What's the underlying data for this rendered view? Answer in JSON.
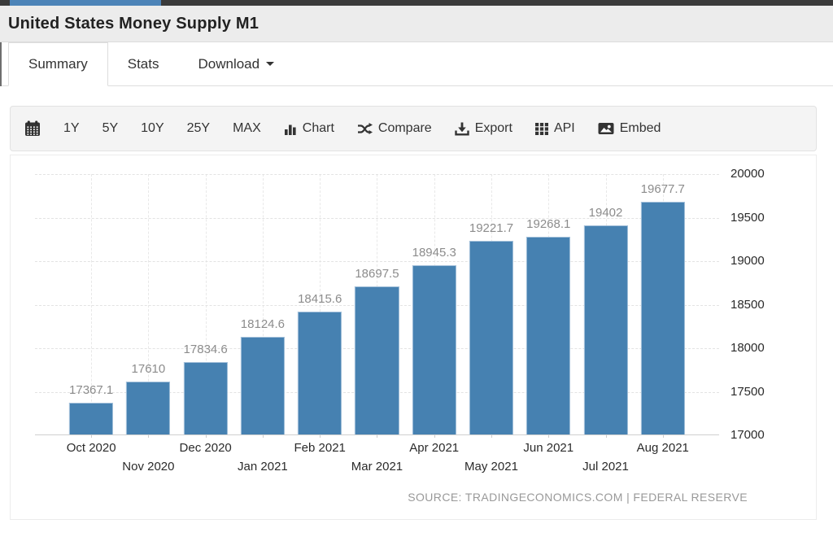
{
  "page": {
    "top_progress_color": "#4d84b8"
  },
  "header": {
    "title": "United States Money Supply M1"
  },
  "tabs": {
    "summary": "Summary",
    "stats": "Stats",
    "download": "Download"
  },
  "toolbar": {
    "ranges": [
      "1Y",
      "5Y",
      "10Y",
      "25Y",
      "MAX"
    ],
    "chart": "Chart",
    "compare": "Compare",
    "export": "Export",
    "api": "API",
    "embed": "Embed",
    "icons": [
      "calendar-icon",
      "bar-chart-icon",
      "shuffle-icon",
      "download-icon",
      "grid-icon",
      "image-icon",
      "caret-down-icon"
    ]
  },
  "chart_data": {
    "type": "bar",
    "title": "United States Money Supply M1",
    "categories": [
      "Oct 2020",
      "Nov 2020",
      "Dec 2020",
      "Jan 2021",
      "Feb 2021",
      "Mar 2021",
      "Apr 2021",
      "May 2021",
      "Jun 2021",
      "Jul 2021",
      "Aug 2021"
    ],
    "values": [
      17367.1,
      17610,
      17834.6,
      18124.6,
      18415.6,
      18697.5,
      18945.3,
      19221.7,
      19268.1,
      19402,
      19677.7
    ],
    "xlabel": "",
    "ylabel": "",
    "ylim": [
      17000,
      20000
    ],
    "ytick_step": 500,
    "yaxis_side": "right",
    "grid": true,
    "xlabel_stagger": true,
    "bar_color": "#4681b1",
    "bar_border_color": "#a3c0da",
    "value_label_color": "#8c8c8c",
    "source": "SOURCE: TRADINGECONOMICS.COM | FEDERAL RESERVE"
  }
}
